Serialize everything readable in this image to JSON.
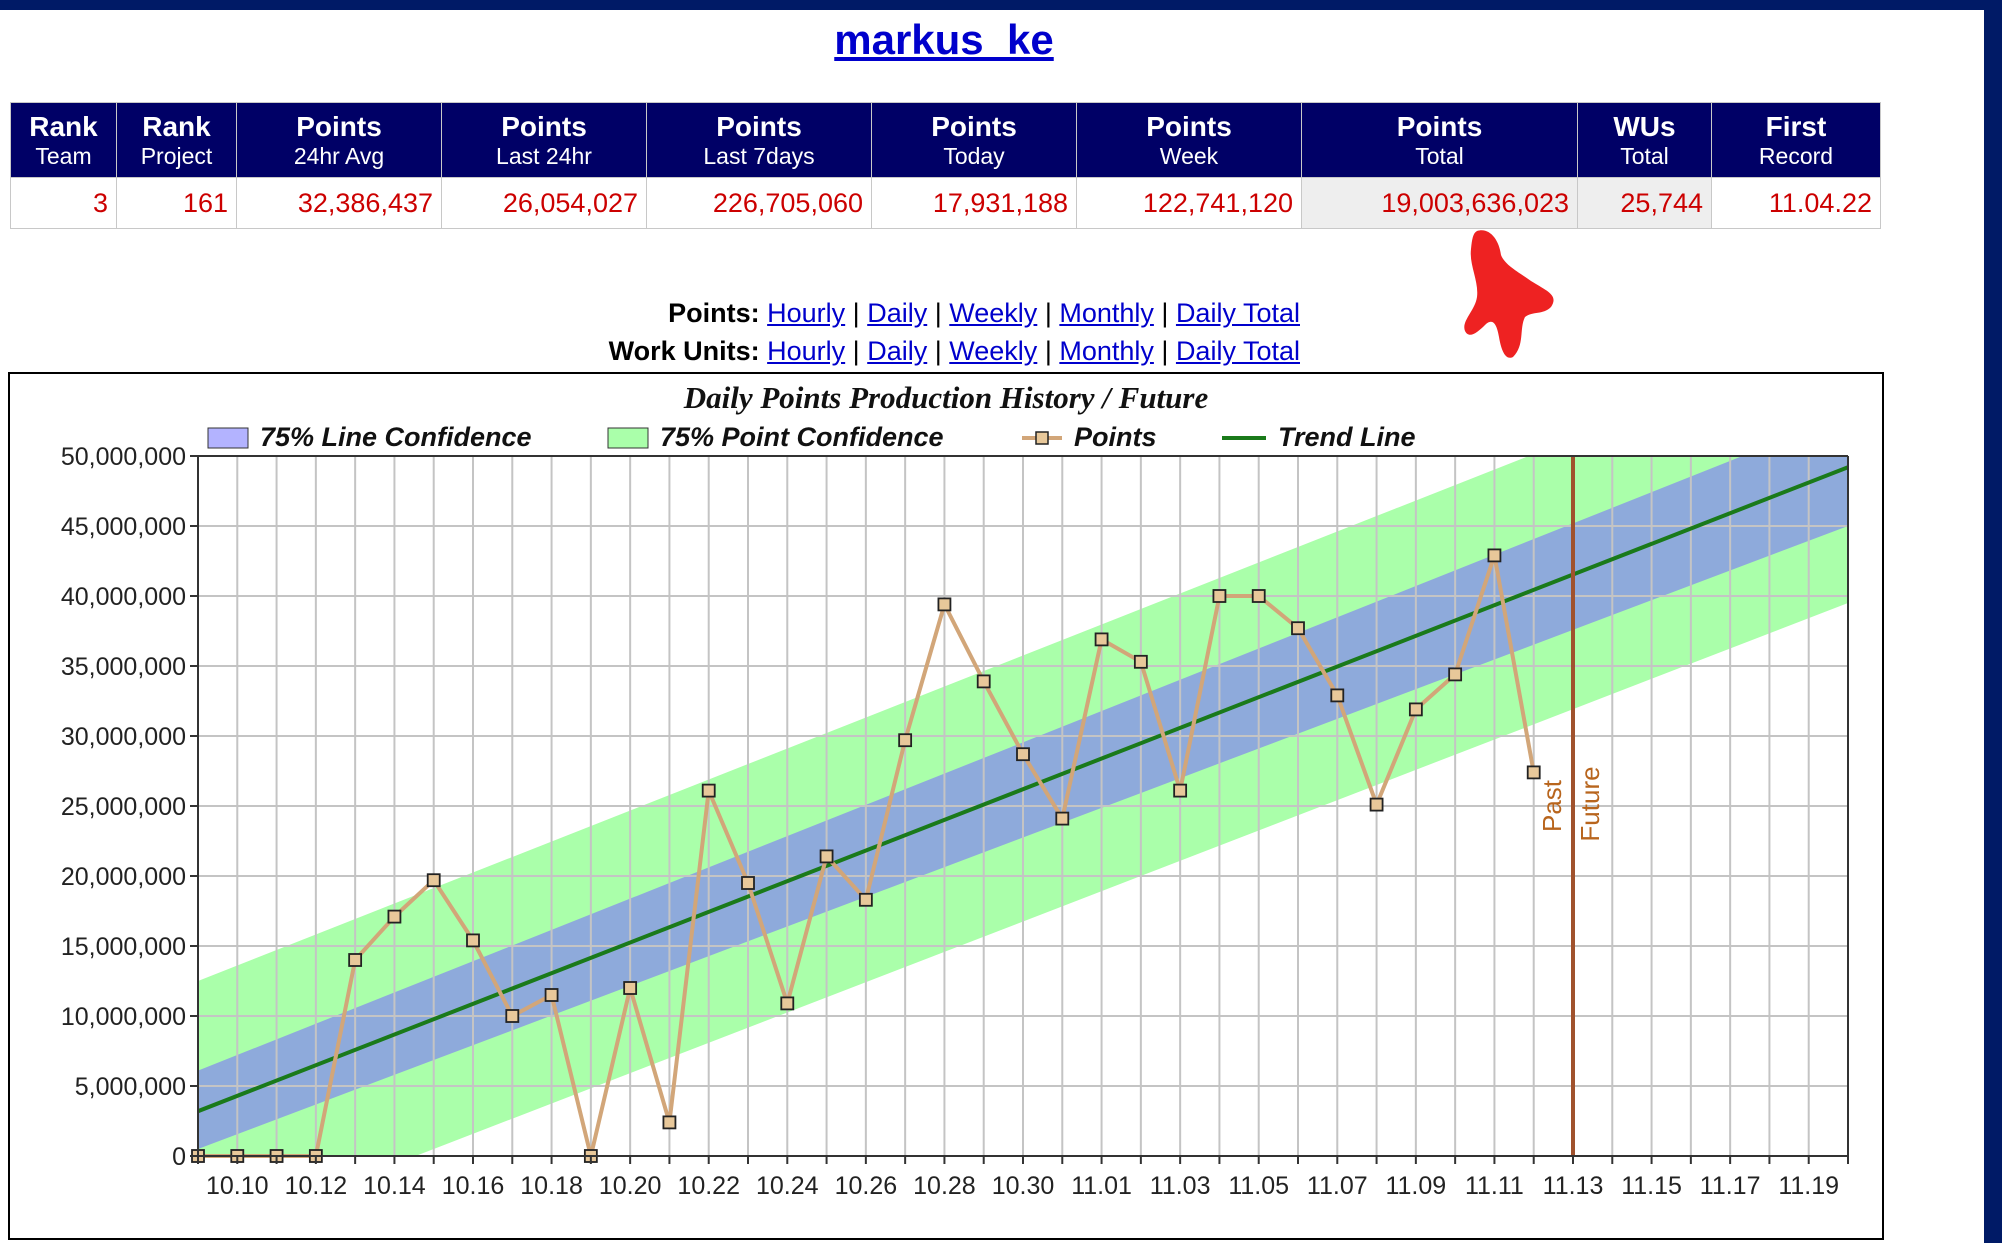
{
  "page": {
    "title": "markus_ke"
  },
  "stats": {
    "headers": [
      {
        "line1": "Rank",
        "line2": "Team"
      },
      {
        "line1": "Rank",
        "line2": "Project"
      },
      {
        "line1": "Points",
        "line2": "24hr Avg"
      },
      {
        "line1": "Points",
        "line2": "Last 24hr"
      },
      {
        "line1": "Points",
        "line2": "Last 7days"
      },
      {
        "line1": "Points",
        "line2": "Today"
      },
      {
        "line1": "Points",
        "line2": "Week"
      },
      {
        "line1": "Points",
        "line2": "Total"
      },
      {
        "line1": "WUs",
        "line2": "Total"
      },
      {
        "line1": "First",
        "line2": "Record"
      }
    ],
    "values": [
      "3",
      "161",
      "32,386,437",
      "26,054,027",
      "226,705,060",
      "17,931,188",
      "122,741,120",
      "19,003,636,023",
      "25,744",
      "11.04.22"
    ]
  },
  "links": {
    "points_label": "Points:",
    "wu_label": "Work Units:",
    "items": [
      "Hourly",
      "Daily",
      "Weekly",
      "Monthly",
      "Daily Total"
    ],
    "separator": "|"
  },
  "colors": {
    "header_bg": "#000066",
    "value_text": "#cc0000",
    "line_conf": "#8eaadb",
    "point_conf": "#aaffaa",
    "points_line": "#d2a679",
    "trend": "#1a7a1a",
    "divider": "#a0522d",
    "annotation": "#ee2222"
  },
  "chart_data": {
    "type": "line",
    "title": "Daily Points Production History / Future",
    "legend": [
      "75% Line Confidence",
      "75% Point Confidence",
      "Points",
      "Trend Line"
    ],
    "legend_position": "top",
    "ylim": [
      0,
      50000000
    ],
    "yticks": [
      0,
      5000000,
      10000000,
      15000000,
      20000000,
      25000000,
      30000000,
      35000000,
      40000000,
      45000000,
      50000000
    ],
    "ytick_labels": [
      "0",
      "5,000,000",
      "10,000,000",
      "15,000,000",
      "20,000,000",
      "25,000,000",
      "30,000,000",
      "35,000,000",
      "40,000,000",
      "45,000,000",
      "50,000,000"
    ],
    "x_categories": [
      "10.09",
      "10.10",
      "10.11",
      "10.12",
      "10.13",
      "10.14",
      "10.15",
      "10.16",
      "10.17",
      "10.18",
      "10.19",
      "10.20",
      "10.21",
      "10.22",
      "10.23",
      "10.24",
      "10.25",
      "10.26",
      "10.27",
      "10.28",
      "10.29",
      "10.30",
      "10.31",
      "11.01",
      "11.02",
      "11.03",
      "11.04",
      "11.05",
      "11.06",
      "11.07",
      "11.08",
      "11.09",
      "11.10",
      "11.11",
      "11.12",
      "11.13",
      "11.14",
      "11.15",
      "11.16",
      "11.17",
      "11.18",
      "11.19",
      "11.20"
    ],
    "x_tick_labels": [
      "10.10",
      "10.12",
      "10.14",
      "10.16",
      "10.18",
      "10.20",
      "10.22",
      "10.24",
      "10.26",
      "10.28",
      "10.30",
      "11.01",
      "11.03",
      "11.05",
      "11.07",
      "11.09",
      "11.11",
      "11.13",
      "11.15",
      "11.17",
      "11.19"
    ],
    "grid": true,
    "divider_at": "11.13",
    "divider_labels": [
      "Past",
      "Future"
    ],
    "series": [
      {
        "name": "Points",
        "values": [
          0,
          0,
          0,
          0,
          14000000,
          17100000,
          19700000,
          15400000,
          10000000,
          11500000,
          0,
          12000000,
          2400000,
          26100000,
          19500000,
          10900000,
          21400000,
          18300000,
          29700000,
          39400000,
          33900000,
          28700000,
          24100000,
          36900000,
          35300000,
          26100000,
          40000000,
          40000000,
          37700000,
          32900000,
          25100000,
          31900000,
          34400000,
          42900000,
          27400000
        ]
      },
      {
        "name": "Trend Line",
        "start": 3200000,
        "end": 49200000
      }
    ],
    "bands": [
      {
        "name": "75% Line Confidence",
        "start_low": 500000,
        "start_high": 6100000,
        "end_low": 45000000,
        "end_high": 53000000
      },
      {
        "name": "75% Point Confidence",
        "start_low": -6000000,
        "start_high": 12500000,
        "end_low": 39500000,
        "end_high": 59000000
      }
    ]
  }
}
